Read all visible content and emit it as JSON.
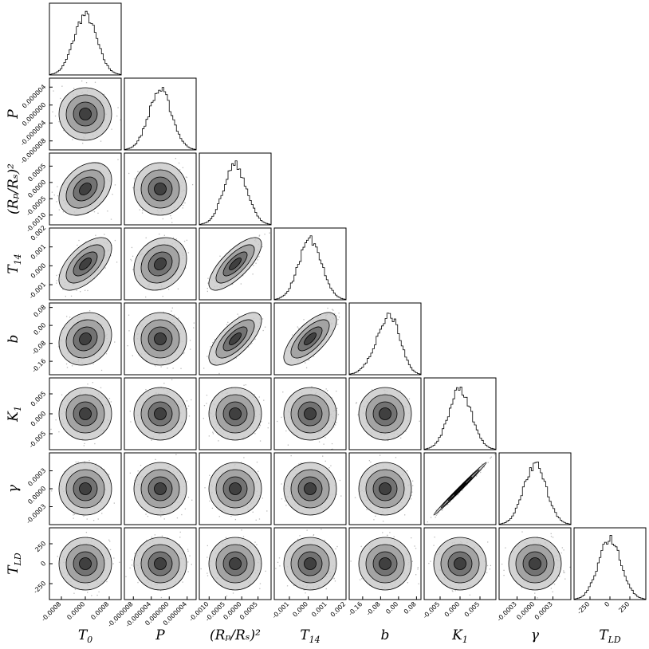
{
  "chart_data": {
    "type": "corner",
    "variables": [
      {
        "label": "T",
        "sub": "0",
        "lim": [
          -0.0012,
          0.0012
        ],
        "ticks": [
          {
            "value": -0.0008,
            "label": "-0.0008"
          },
          {
            "value": 0,
            "label": "0.0000"
          },
          {
            "value": 0.0008,
            "label": "0.0008"
          }
        ]
      },
      {
        "label": "P",
        "lim": [
          -1e-05,
          6e-06
        ],
        "ticks": [
          {
            "value": -8e-06,
            "label": "-0.000008"
          },
          {
            "value": -4e-06,
            "label": "-0.000004"
          },
          {
            "value": 0,
            "label": "0.000000"
          },
          {
            "value": 4e-06,
            "label": "0.000004"
          }
        ]
      },
      {
        "label": "(Rₚ/Rₛ)²",
        "lim": [
          -0.0013,
          0.0009
        ],
        "ticks": [
          {
            "value": -0.001,
            "label": "-0.0010"
          },
          {
            "value": -0.0005,
            "label": "-0.0005"
          },
          {
            "value": 0,
            "label": "0.0000"
          },
          {
            "value": 0.0005,
            "label": "0.0005"
          }
        ]
      },
      {
        "label": "T",
        "sub": "14",
        "lim": [
          -0.0018,
          0.002
        ],
        "ticks": [
          {
            "value": -0.001,
            "label": "-0.001"
          },
          {
            "value": 0,
            "label": "0.000"
          },
          {
            "value": 0.001,
            "label": "0.001"
          },
          {
            "value": 0.002,
            "label": "0.002"
          }
        ]
      },
      {
        "label": "b",
        "lim": [
          -0.22,
          0.1
        ],
        "ticks": [
          {
            "value": -0.16,
            "label": "-0.16"
          },
          {
            "value": -0.08,
            "label": "-0.08"
          },
          {
            "value": 0,
            "label": "0.00"
          },
          {
            "value": 0.08,
            "label": "0.08"
          }
        ]
      },
      {
        "label": "K",
        "sub": "1",
        "lim": [
          -0.009,
          0.009
        ],
        "ticks": [
          {
            "value": -0.005,
            "label": "-0.005"
          },
          {
            "value": 0,
            "label": "0.000"
          },
          {
            "value": 0.005,
            "label": "0.005"
          }
        ]
      },
      {
        "label": "γ",
        "lim": [
          -0.0006,
          0.0006
        ],
        "ticks": [
          {
            "value": -0.0003,
            "label": "-0.0003"
          },
          {
            "value": 0,
            "label": "0.0000"
          },
          {
            "value": 0.0003,
            "label": "0.0003"
          }
        ]
      },
      {
        "label": "T",
        "sub": "LD",
        "lim": [
          -450,
          450
        ],
        "ticks": [
          -250,
          0,
          250
        ]
      }
    ]
  }
}
